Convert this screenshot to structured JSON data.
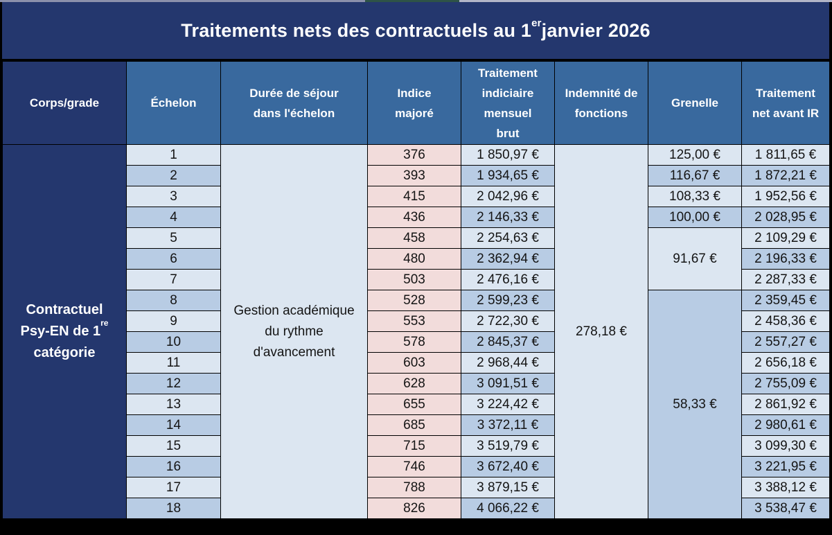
{
  "title": {
    "prefix": "Traitements nets des contractuels au 1",
    "superscript": "er",
    "suffix": " janvier 2026"
  },
  "columns": [
    {
      "label": "Corps/grade"
    },
    {
      "label": "Échelon"
    },
    {
      "label": "Durée de séjour dans l'échelon"
    },
    {
      "label": "Indice majoré"
    },
    {
      "label": "Traitement indiciaire mensuel brut"
    },
    {
      "label": "Indemnité de fonctions"
    },
    {
      "label": "Grenelle"
    },
    {
      "label": "Traitement net avant IR"
    }
  ],
  "corps_cell": {
    "text_before_sup": "Contractuel Psy-EN de 1",
    "superscript": "re",
    "text_after_sup": " catégorie"
  },
  "duree_cell": {
    "text": "Gestion académique du rythme d'avancement"
  },
  "indemnite_cell": {
    "value": "278,18 €"
  },
  "grenelle_groups": [
    {
      "value": "125,00 €",
      "row_start": 1,
      "row_span": 1,
      "shade": "light"
    },
    {
      "value": "116,67 €",
      "row_start": 2,
      "row_span": 1,
      "shade": "dark"
    },
    {
      "value": "108,33 €",
      "row_start": 3,
      "row_span": 1,
      "shade": "light"
    },
    {
      "value": "100,00 €",
      "row_start": 4,
      "row_span": 1,
      "shade": "dark"
    },
    {
      "value": "91,67 €",
      "row_start": 5,
      "row_span": 3,
      "shade": "light"
    },
    {
      "value": "58,33 €",
      "row_start": 8,
      "row_span": 11,
      "shade": "dark"
    }
  ],
  "rows": [
    {
      "echelon": "1",
      "indice": "376",
      "brut": "1 850,97 €",
      "net": "1 811,65 €"
    },
    {
      "echelon": "2",
      "indice": "393",
      "brut": "1 934,65 €",
      "net": "1 872,21 €"
    },
    {
      "echelon": "3",
      "indice": "415",
      "brut": "2 042,96 €",
      "net": "1 952,56 €"
    },
    {
      "echelon": "4",
      "indice": "436",
      "brut": "2 146,33 €",
      "net": "2 028,95 €"
    },
    {
      "echelon": "5",
      "indice": "458",
      "brut": "2 254,63 €",
      "net": "2 109,29 €"
    },
    {
      "echelon": "6",
      "indice": "480",
      "brut": "2 362,94 €",
      "net": "2 196,33 €"
    },
    {
      "echelon": "7",
      "indice": "503",
      "brut": "2 476,16 €",
      "net": "2 287,33 €"
    },
    {
      "echelon": "8",
      "indice": "528",
      "brut": "2 599,23 €",
      "net": "2 359,45 €"
    },
    {
      "echelon": "9",
      "indice": "553",
      "brut": "2 722,30 €",
      "net": "2 458,36 €"
    },
    {
      "echelon": "10",
      "indice": "578",
      "brut": "2 845,37 €",
      "net": "2 557,27 €"
    },
    {
      "echelon": "11",
      "indice": "603",
      "brut": "2 968,44 €",
      "net": "2 656,18 €"
    },
    {
      "echelon": "12",
      "indice": "628",
      "brut": "3 091,51 €",
      "net": "2 755,09 €"
    },
    {
      "echelon": "13",
      "indice": "655",
      "brut": "3 224,42 €",
      "net": "2 861,92 €"
    },
    {
      "echelon": "14",
      "indice": "685",
      "brut": "3 372,11 €",
      "net": "2 980,61 €"
    },
    {
      "echelon": "15",
      "indice": "715",
      "brut": "3 519,79 €",
      "net": "3 099,30 €"
    },
    {
      "echelon": "16",
      "indice": "746",
      "brut": "3 672,40 €",
      "net": "3 221,95 €"
    },
    {
      "echelon": "17",
      "indice": "788",
      "brut": "3 879,15 €",
      "net": "3 388,12 €"
    },
    {
      "echelon": "18",
      "indice": "826",
      "brut": "4 066,22 €",
      "net": "3 538,47 €"
    }
  ],
  "colors": {
    "navy": "#24376e",
    "header_blue": "#39699e",
    "row_light": "#dce6f1",
    "row_dark": "#b8cce4",
    "indice_pink": "#f2dcdb",
    "border": "#000000",
    "title_text": "#ffffff"
  }
}
